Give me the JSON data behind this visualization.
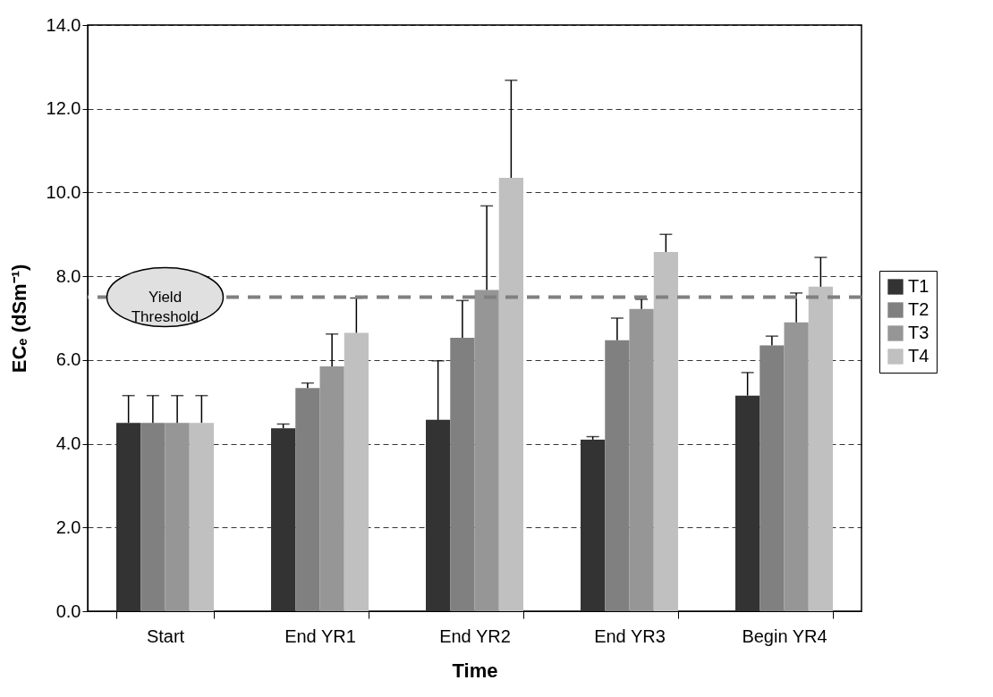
{
  "chart_data": {
    "type": "bar",
    "xlabel": "Time",
    "ylabel": "ECₑ (dSm⁻¹)",
    "categories": [
      "Start",
      "End YR1",
      "End YR2",
      "End YR3",
      "Begin YR4"
    ],
    "series": [
      {
        "name": "T1",
        "color": "#333333",
        "values": [
          4.5,
          4.37,
          4.57,
          4.1,
          5.15
        ],
        "errors": [
          [
            4.5,
            5.15
          ],
          [
            4.37,
            4.47
          ],
          [
            4.57,
            5.98
          ],
          [
            4.1,
            4.17
          ],
          [
            5.15,
            5.7
          ]
        ]
      },
      {
        "name": "T2",
        "color": "#808080",
        "values": [
          4.5,
          5.33,
          6.53,
          6.47,
          6.35
        ],
        "errors": [
          [
            4.5,
            5.15
          ],
          [
            5.33,
            5.45
          ],
          [
            6.53,
            7.42
          ],
          [
            6.47,
            7.0
          ],
          [
            6.35,
            6.57
          ]
        ]
      },
      {
        "name": "T3",
        "color": "#969696",
        "values": [
          4.5,
          5.85,
          7.67,
          7.22,
          6.9
        ],
        "errors": [
          [
            4.5,
            5.15
          ],
          [
            5.85,
            6.62
          ],
          [
            7.67,
            9.68
          ],
          [
            7.22,
            7.45
          ],
          [
            6.9,
            7.6
          ]
        ]
      },
      {
        "name": "T4",
        "color": "#c0c0c0",
        "values": [
          4.5,
          6.65,
          10.35,
          8.58,
          7.75
        ],
        "errors": [
          [
            4.5,
            5.15
          ],
          [
            6.65,
            7.48
          ],
          [
            10.35,
            12.68
          ],
          [
            8.58,
            9.0
          ],
          [
            7.75,
            8.45
          ]
        ]
      }
    ],
    "ylim": [
      0,
      14
    ],
    "yticks": [
      {
        "value": 0,
        "label": "0.0"
      },
      {
        "value": 2,
        "label": "2.0"
      },
      {
        "value": 4,
        "label": "4.0"
      },
      {
        "value": 6,
        "label": "6.0"
      },
      {
        "value": 8,
        "label": "8.0"
      },
      {
        "value": 10,
        "label": "10.0"
      },
      {
        "value": 12,
        "label": "12.0"
      },
      {
        "value": 14,
        "label": "14.0"
      }
    ],
    "ref_lines": [
      {
        "axis": "y",
        "value": 7.5,
        "label": "Yield Threshold",
        "color": "#808080",
        "line_style": "dashed"
      }
    ],
    "grid": "y",
    "legend": "right"
  }
}
